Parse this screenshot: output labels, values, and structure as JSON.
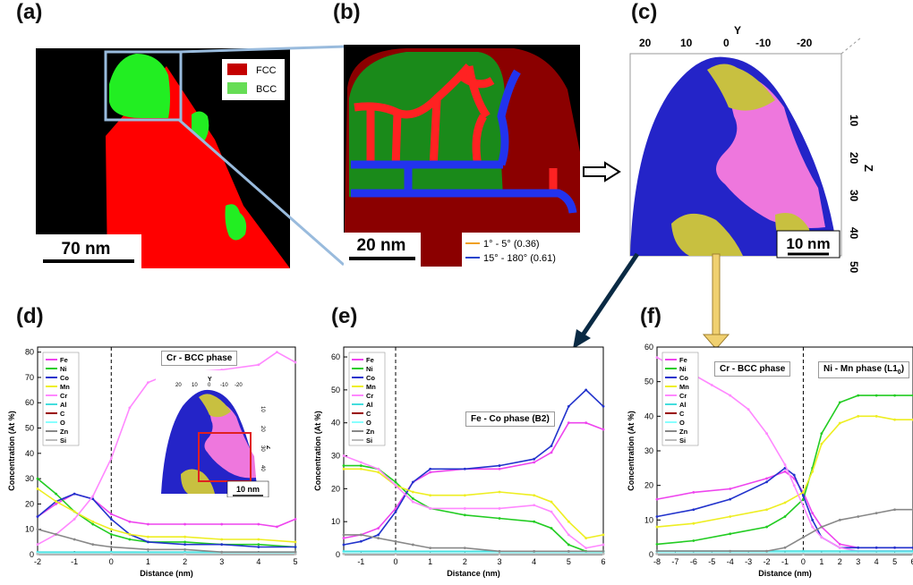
{
  "panels": {
    "a": {
      "letter": "(a)",
      "legend": [
        {
          "label": "FCC",
          "color": "#c40000"
        },
        {
          "label": "BCC",
          "color": "#66dd55"
        }
      ],
      "scalebar": "70 nm"
    },
    "b": {
      "letter": "(b)",
      "scalebar": "20 nm",
      "legend": [
        {
          "label": "1° - 5° (0.36)",
          "color": "#f0a020"
        },
        {
          "label": "15° - 180° (0.61)",
          "color": "#2244cc"
        }
      ]
    },
    "c": {
      "letter": "(c)",
      "y_axis_title": "Y",
      "y_ticks": [
        "20",
        "10",
        "0",
        "-10",
        "-20"
      ],
      "z_axis_title": "Z",
      "z_ticks": [
        "10",
        "20",
        "30",
        "40",
        "50"
      ],
      "scalebar": "10 nm"
    },
    "d": {
      "letter": "(d)",
      "annotation": "Cr - BCC phase",
      "inset_scalebar": "10 nm",
      "inset_y_title": "Y",
      "inset_y_ticks": [
        "20",
        "10",
        "0",
        "-10",
        "-20"
      ],
      "inset_z_title": "Z",
      "inset_z_ticks": [
        "10",
        "20",
        "30",
        "40",
        "50"
      ]
    },
    "e": {
      "letter": "(e)",
      "annotation": "Fe - Co phase (B2)"
    },
    "f": {
      "letter": "(f)",
      "annotation_left": "Cr - BCC phase",
      "annotation_right": "Ni - Mn phase (L1",
      "annotation_right_sub": "0",
      "annotation_right_end": ")"
    }
  },
  "colors": {
    "Fe": "#ee44ee",
    "Ni": "#22cc22",
    "Co": "#2233cc",
    "Mn": "#eeee22",
    "Cr": "#ff88ff",
    "Al": "#44dddd",
    "C": "#990000",
    "O": "#88ffff",
    "Zn": "#888888",
    "Si": "#bbbbbb"
  },
  "chart_data": [
    {
      "id": "d",
      "type": "line",
      "xlabel": "Distance (nm)",
      "ylabel": "Concentration (At %)",
      "xlim": [
        -2,
        5
      ],
      "ylim": [
        0,
        82
      ],
      "xticks": [
        -2,
        -1,
        0,
        1,
        2,
        3,
        4,
        5
      ],
      "yticks": [
        0,
        10,
        20,
        30,
        40,
        50,
        60,
        70,
        80
      ],
      "interface_x": 0,
      "legend": [
        "Fe",
        "Ni",
        "Co",
        "Mn",
        "Cr",
        "Al",
        "C",
        "O",
        "Zn",
        "Si"
      ],
      "series": [
        {
          "name": "Fe",
          "x": [
            -2,
            -1.5,
            -1,
            -0.5,
            0,
            0.5,
            1,
            2,
            3,
            4,
            4.5,
            5
          ],
          "values": [
            15,
            20,
            24,
            22,
            16,
            13,
            12,
            12,
            12,
            12,
            11,
            14
          ]
        },
        {
          "name": "Ni",
          "x": [
            -2,
            -1.5,
            -1,
            -0.5,
            0,
            0.5,
            1,
            2,
            3,
            4,
            5
          ],
          "values": [
            30,
            24,
            17,
            12,
            8,
            6,
            5,
            5,
            4,
            4,
            3
          ]
        },
        {
          "name": "Co",
          "x": [
            -2,
            -1.5,
            -1,
            -0.5,
            0,
            0.5,
            1,
            2,
            3,
            4,
            5
          ],
          "values": [
            15,
            21,
            24,
            22,
            14,
            8,
            5,
            4,
            4,
            3,
            3
          ]
        },
        {
          "name": "Mn",
          "x": [
            -2,
            -1.5,
            -1,
            -0.5,
            0,
            0.5,
            1,
            2,
            3,
            4,
            5
          ],
          "values": [
            26,
            21,
            17,
            13,
            10,
            8,
            7,
            7,
            6,
            6,
            5
          ]
        },
        {
          "name": "Cr",
          "x": [
            -2,
            -1.5,
            -1,
            -0.5,
            0,
            0.5,
            1,
            1.5,
            2,
            3,
            4,
            4.5,
            5
          ],
          "values": [
            4,
            8,
            14,
            23,
            38,
            58,
            68,
            71,
            72,
            73,
            75,
            80,
            76
          ]
        },
        {
          "name": "Al",
          "x": [
            -2,
            0,
            2,
            5
          ],
          "values": [
            1,
            1,
            1,
            1
          ]
        },
        {
          "name": "C",
          "x": [
            -2,
            0,
            2,
            5
          ],
          "values": [
            0.3,
            0.3,
            0.3,
            0.3
          ]
        },
        {
          "name": "O",
          "x": [
            -2,
            0,
            2,
            5
          ],
          "values": [
            0.5,
            0.5,
            0.5,
            0.5
          ]
        },
        {
          "name": "Zn",
          "x": [
            -2,
            -1.5,
            -1,
            -0.5,
            0,
            1,
            2,
            3,
            5
          ],
          "values": [
            10,
            8,
            6,
            4,
            3,
            2,
            2,
            1,
            1
          ]
        },
        {
          "name": "Si",
          "x": [
            -2,
            0,
            2,
            5
          ],
          "values": [
            0.2,
            0.2,
            0.2,
            0.2
          ]
        }
      ]
    },
    {
      "id": "e",
      "type": "line",
      "xlabel": "Distance (nm)",
      "ylabel": "Concentration (At %)",
      "xlim": [
        -1.5,
        6
      ],
      "ylim": [
        0,
        63
      ],
      "xticks": [
        -1,
        0,
        1,
        2,
        3,
        4,
        5,
        6
      ],
      "yticks": [
        0,
        10,
        20,
        30,
        40,
        50,
        60
      ],
      "interface_x": 0,
      "legend": [
        "Fe",
        "Ni",
        "Co",
        "Mn",
        "Cr",
        "Al",
        "C",
        "O",
        "Zn",
        "Si"
      ],
      "series": [
        {
          "name": "Fe",
          "x": [
            -1.5,
            -1,
            -0.5,
            0,
            0.5,
            1,
            2,
            3,
            4,
            4.5,
            5,
            5.5,
            6
          ],
          "values": [
            5,
            6,
            8,
            14,
            22,
            25,
            26,
            26,
            28,
            31,
            40,
            40,
            38
          ]
        },
        {
          "name": "Ni",
          "x": [
            -1.5,
            -1,
            -0.5,
            0,
            0.5,
            1,
            2,
            3,
            4,
            4.5,
            5,
            5.5,
            6
          ],
          "values": [
            27,
            27,
            26,
            22,
            17,
            14,
            12,
            11,
            10,
            8,
            3,
            1,
            1
          ]
        },
        {
          "name": "Co",
          "x": [
            -1.5,
            -1,
            -0.5,
            0,
            0.5,
            1,
            2,
            3,
            4,
            4.5,
            5,
            5.5,
            6
          ],
          "values": [
            3,
            4,
            6,
            13,
            22,
            26,
            26,
            27,
            29,
            33,
            45,
            50,
            45
          ]
        },
        {
          "name": "Mn",
          "x": [
            -1.5,
            -1,
            -0.5,
            0,
            0.5,
            1,
            2,
            3,
            4,
            4.5,
            5,
            5.5,
            6
          ],
          "values": [
            26,
            26,
            25,
            21,
            19,
            18,
            18,
            19,
            18,
            16,
            10,
            5,
            6
          ]
        },
        {
          "name": "Cr",
          "x": [
            -1.5,
            -1,
            -0.5,
            0,
            0.5,
            1,
            2,
            3,
            4,
            4.5,
            5,
            5.5,
            6
          ],
          "values": [
            30,
            28,
            26,
            21,
            16,
            14,
            14,
            14,
            15,
            13,
            6,
            2,
            3
          ]
        },
        {
          "name": "Al",
          "x": [
            -1.5,
            0,
            3,
            6
          ],
          "values": [
            1,
            1,
            1,
            1
          ]
        },
        {
          "name": "C",
          "x": [
            -1.5,
            0,
            3,
            6
          ],
          "values": [
            0.3,
            0.3,
            0.3,
            0.3
          ]
        },
        {
          "name": "O",
          "x": [
            -1.5,
            0,
            3,
            6
          ],
          "values": [
            0.5,
            0.5,
            0.5,
            0.5
          ]
        },
        {
          "name": "Zn",
          "x": [
            -1.5,
            -1,
            -0.5,
            0,
            0.5,
            1,
            2,
            3,
            4,
            5,
            6
          ],
          "values": [
            6,
            6,
            5,
            4,
            3,
            2,
            2,
            1,
            1,
            1,
            1
          ]
        },
        {
          "name": "Si",
          "x": [
            -1.5,
            0,
            3,
            6
          ],
          "values": [
            0.2,
            0.2,
            0.2,
            0.2
          ]
        }
      ]
    },
    {
      "id": "f",
      "type": "line",
      "xlabel": "Distance (nm)",
      "ylabel": "Concentration (At %)",
      "xlim": [
        -8,
        6
      ],
      "ylim": [
        0,
        60
      ],
      "xticks": [
        -8,
        -7,
        -6,
        -5,
        -4,
        -3,
        -2,
        -1,
        0,
        1,
        2,
        3,
        4,
        5,
        6
      ],
      "yticks": [
        0,
        10,
        20,
        30,
        40,
        50,
        60
      ],
      "interface_x": 0,
      "legend": [
        "Fe",
        "Ni",
        "Co",
        "Mn",
        "Cr",
        "Al",
        "C",
        "O",
        "Zn",
        "Si"
      ],
      "series": [
        {
          "name": "Fe",
          "x": [
            -8,
            -6,
            -4,
            -2,
            -1,
            -0.5,
            0,
            0.5,
            1,
            2,
            3,
            4,
            5,
            6
          ],
          "values": [
            16,
            18,
            19,
            22,
            24,
            22,
            18,
            12,
            8,
            3,
            2,
            2,
            2,
            2
          ]
        },
        {
          "name": "Ni",
          "x": [
            -8,
            -6,
            -4,
            -2,
            -1,
            0,
            0.5,
            1,
            2,
            3,
            4,
            5,
            6
          ],
          "values": [
            3,
            4,
            6,
            8,
            11,
            16,
            25,
            35,
            44,
            46,
            46,
            46,
            46
          ]
        },
        {
          "name": "Co",
          "x": [
            -8,
            -6,
            -4,
            -2,
            -1,
            -0.5,
            0,
            0.5,
            1,
            2,
            3,
            4,
            5,
            6
          ],
          "values": [
            11,
            13,
            16,
            21,
            25,
            23,
            17,
            10,
            5,
            2,
            2,
            2,
            2,
            2
          ]
        },
        {
          "name": "Mn",
          "x": [
            -8,
            -6,
            -4,
            -2,
            -1,
            0,
            0.5,
            1,
            2,
            3,
            4,
            5,
            6
          ],
          "values": [
            8,
            9,
            11,
            13,
            15,
            18,
            24,
            32,
            38,
            40,
            40,
            39,
            39
          ]
        },
        {
          "name": "Cr",
          "x": [
            -8,
            -7,
            -6,
            -5,
            -4,
            -3,
            -2,
            -1,
            -0.5,
            0,
            0.5,
            1,
            2,
            3,
            6
          ],
          "values": [
            57,
            54,
            52,
            49,
            46,
            42,
            35,
            26,
            20,
            14,
            8,
            5,
            2,
            1,
            1
          ]
        },
        {
          "name": "Al",
          "x": [
            -8,
            0,
            6
          ],
          "values": [
            1,
            1,
            1
          ]
        },
        {
          "name": "C",
          "x": [
            -8,
            0,
            6
          ],
          "values": [
            0.3,
            0.3,
            0.3
          ]
        },
        {
          "name": "O",
          "x": [
            -8,
            0,
            6
          ],
          "values": [
            0.5,
            0.5,
            0.5
          ]
        },
        {
          "name": "Zn",
          "x": [
            -8,
            -4,
            -2,
            -1,
            0,
            1,
            2,
            3,
            4,
            5,
            6
          ],
          "values": [
            1,
            1,
            1,
            2,
            5,
            8,
            10,
            11,
            12,
            13,
            13
          ]
        },
        {
          "name": "Si",
          "x": [
            -8,
            0,
            6
          ],
          "values": [
            0.2,
            0.2,
            0.2
          ]
        }
      ]
    }
  ]
}
